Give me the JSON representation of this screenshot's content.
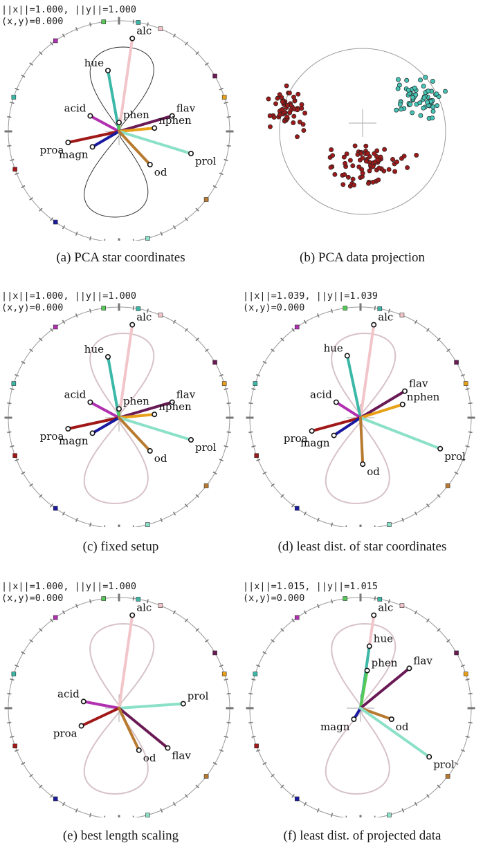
{
  "colors": {
    "alc": "#f1c5c9",
    "hue": "#3bb8a7",
    "acid": "#b030b0",
    "phen": "#55c855",
    "flav": "#6a1a55",
    "nphen": "#e8a018",
    "proa": "#a01818",
    "magn": "#1a1aa0",
    "prol": "#8be0c8",
    "od": "#b87a30",
    "ring": "#777777",
    "curve": "#333333",
    "class_dark": "#9c1a1a",
    "class_teal": "#45c3b5"
  },
  "panels": [
    {
      "kind": "star",
      "caption": "(a) PCA star coordinates",
      "readout_norm": "||x||=1.000, ||y||=1.000",
      "readout_xy": "(x,y)=0.000",
      "curve_style": "dark",
      "axes": [
        {
          "label": "alc",
          "end": [
            0.12,
            0.84
          ],
          "color_key": "alc"
        },
        {
          "label": "hue",
          "end": [
            -0.1,
            0.55
          ],
          "color_key": "hue"
        },
        {
          "label": "acid",
          "end": [
            -0.26,
            0.14
          ],
          "color_key": "acid"
        },
        {
          "label": "phen",
          "end": [
            0.0,
            0.08
          ],
          "color_key": "phen"
        },
        {
          "label": "flav",
          "end": [
            0.48,
            0.14
          ],
          "color_key": "flav"
        },
        {
          "label": "nphen",
          "end": [
            0.32,
            0.03
          ],
          "color_key": "nphen"
        },
        {
          "label": "proa",
          "end": [
            -0.46,
            -0.1
          ],
          "color_key": "proa"
        },
        {
          "label": "magn",
          "end": [
            -0.24,
            -0.14
          ],
          "color_key": "magn"
        },
        {
          "label": "prol",
          "end": [
            0.65,
            -0.2
          ],
          "color_key": "prol"
        },
        {
          "label": "od",
          "end": [
            0.28,
            -0.3
          ],
          "color_key": "od"
        }
      ]
    },
    {
      "kind": "scatter",
      "caption": "(b) PCA data projection"
    },
    {
      "kind": "star",
      "caption": "(c) fixed setup",
      "readout_norm": "||x||=1.000, ||y||=1.000",
      "readout_xy": "(x,y)=0.000",
      "curve_style": "light",
      "axes": [
        {
          "label": "alc",
          "end": [
            0.12,
            0.84
          ],
          "color_key": "alc"
        },
        {
          "label": "hue",
          "end": [
            -0.1,
            0.55
          ],
          "color_key": "hue"
        },
        {
          "label": "acid",
          "end": [
            -0.26,
            0.14
          ],
          "color_key": "acid"
        },
        {
          "label": "phen",
          "end": [
            0.0,
            0.08
          ],
          "color_key": "phen"
        },
        {
          "label": "flav",
          "end": [
            0.48,
            0.14
          ],
          "color_key": "flav"
        },
        {
          "label": "nphen",
          "end": [
            0.32,
            0.03
          ],
          "color_key": "nphen"
        },
        {
          "label": "proa",
          "end": [
            -0.46,
            -0.1
          ],
          "color_key": "proa"
        },
        {
          "label": "magn",
          "end": [
            -0.24,
            -0.14
          ],
          "color_key": "magn"
        },
        {
          "label": "prol",
          "end": [
            0.65,
            -0.2
          ],
          "color_key": "prol"
        },
        {
          "label": "od",
          "end": [
            0.28,
            -0.3
          ],
          "color_key": "od"
        }
      ]
    },
    {
      "kind": "star",
      "caption": "(d) least dist. of star coordinates",
      "readout_norm": "||x||=1.039, ||y||=1.039",
      "readout_xy": "(x,y)=0.000",
      "curve_style": "light",
      "axes": [
        {
          "label": "alc",
          "end": [
            0.12,
            0.84
          ],
          "color_key": "alc"
        },
        {
          "label": "hue",
          "end": [
            -0.12,
            0.56
          ],
          "color_key": "hue"
        },
        {
          "label": "acid",
          "end": [
            -0.22,
            0.14
          ],
          "color_key": "acid"
        },
        {
          "label": "flav",
          "end": [
            0.4,
            0.24
          ],
          "color_key": "flav"
        },
        {
          "label": "nphen",
          "end": [
            0.38,
            0.12
          ],
          "color_key": "nphen"
        },
        {
          "label": "proa",
          "end": [
            -0.44,
            -0.12
          ],
          "color_key": "proa"
        },
        {
          "label": "magn",
          "end": [
            -0.24,
            -0.16
          ],
          "color_key": "magn"
        },
        {
          "label": "prol",
          "end": [
            0.72,
            -0.28
          ],
          "color_key": "prol"
        },
        {
          "label": "od",
          "end": [
            0.02,
            -0.42
          ],
          "color_key": "od"
        }
      ]
    },
    {
      "kind": "star",
      "caption": "(e) best length scaling",
      "readout_norm": "||x||=1.000, ||y||=1.000",
      "readout_xy": "(x,y)=0.000",
      "curve_style": "light",
      "axes": [
        {
          "label": "alc",
          "end": [
            0.12,
            0.84
          ],
          "color_key": "alc"
        },
        {
          "label": "acid",
          "end": [
            -0.32,
            0.06
          ],
          "color_key": "acid"
        },
        {
          "label": "proa",
          "end": [
            -0.34,
            -0.16
          ],
          "color_key": "proa"
        },
        {
          "label": "prol",
          "end": [
            0.58,
            0.04
          ],
          "color_key": "prol"
        },
        {
          "label": "flav",
          "end": [
            0.44,
            -0.36
          ],
          "color_key": "flav"
        },
        {
          "label": "od",
          "end": [
            0.18,
            -0.38
          ],
          "color_key": "od"
        }
      ]
    },
    {
      "kind": "star",
      "caption": "(f) least dist. of projected data",
      "readout_norm": "||x||=1.015, ||y||=1.015",
      "readout_xy": "(x,y)=0.000",
      "curve_style": "light",
      "axes": [
        {
          "label": "alc",
          "end": [
            0.12,
            0.84
          ],
          "color_key": "alc"
        },
        {
          "label": "hue",
          "end": [
            0.08,
            0.56
          ],
          "color_key": "hue"
        },
        {
          "label": "phen",
          "end": [
            0.06,
            0.34
          ],
          "color_key": "phen"
        },
        {
          "label": "flav",
          "end": [
            0.44,
            0.36
          ],
          "color_key": "flav"
        },
        {
          "label": "magn",
          "end": [
            -0.06,
            -0.1
          ],
          "color_key": "magn"
        },
        {
          "label": "od",
          "end": [
            0.28,
            -0.1
          ],
          "color_key": "od"
        },
        {
          "label": "prol",
          "end": [
            0.62,
            -0.44
          ],
          "color_key": "prol"
        }
      ]
    }
  ]
}
